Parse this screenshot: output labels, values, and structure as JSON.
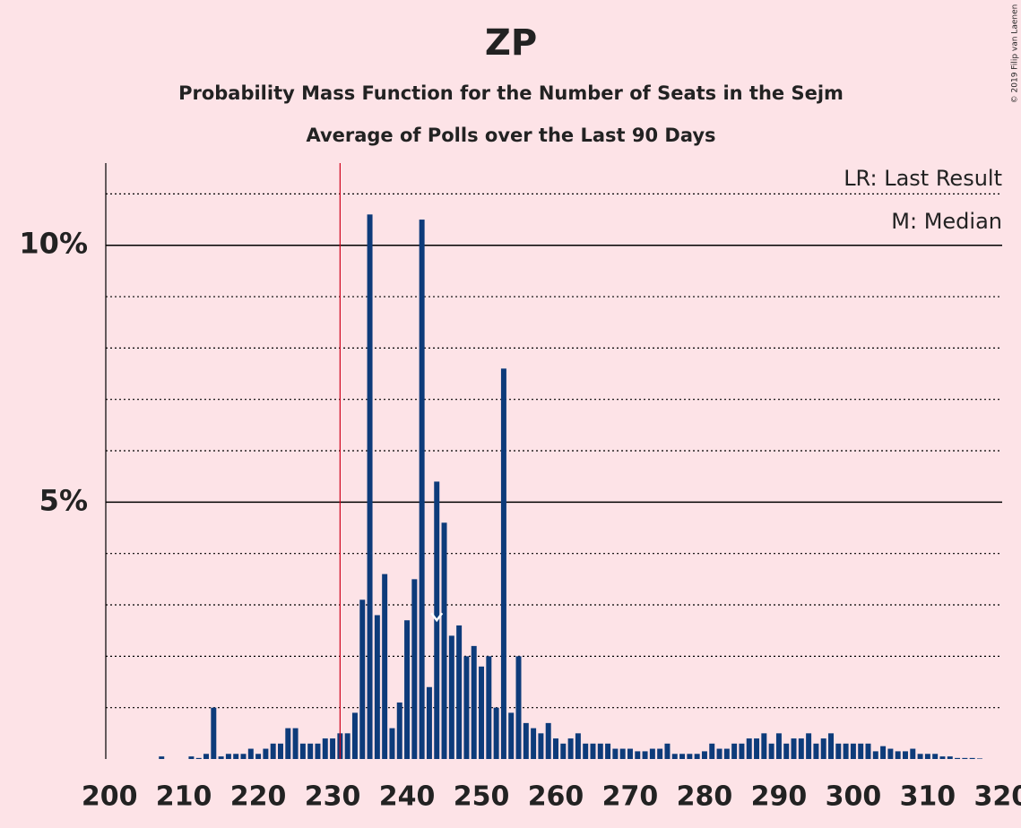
{
  "chart_data": {
    "type": "bar",
    "title": "ZP",
    "subtitle": "Probability Mass Function for the Number of Seats in the Sejm",
    "subtitle2": "Average of Polls over the Last 90 Days",
    "credit": "© 2019 Filip van Laenen",
    "legend": [
      "LR: Last Result",
      "M: Median"
    ],
    "color": "#0d3b7a",
    "x": [
      200,
      201,
      202,
      203,
      204,
      205,
      206,
      207,
      208,
      209,
      210,
      211,
      212,
      213,
      214,
      215,
      216,
      217,
      218,
      219,
      220,
      221,
      222,
      223,
      224,
      225,
      226,
      227,
      228,
      229,
      230,
      231,
      232,
      233,
      234,
      235,
      236,
      237,
      238,
      239,
      240,
      241,
      242,
      243,
      244,
      245,
      246,
      247,
      248,
      249,
      250,
      251,
      252,
      253,
      254,
      255,
      256,
      257,
      258,
      259,
      260,
      261,
      262,
      263,
      264,
      265,
      266,
      267,
      268,
      269,
      270,
      271,
      272,
      273,
      274,
      275,
      276,
      277,
      278,
      279,
      280,
      281,
      282,
      283,
      284,
      285,
      286,
      287,
      288,
      289,
      290,
      291,
      292,
      293,
      294,
      295,
      296,
      297,
      298,
      299,
      300,
      301,
      302,
      303,
      304,
      305,
      306,
      307,
      308,
      309,
      310,
      311,
      312,
      313,
      314,
      315,
      316,
      317,
      318,
      319,
      320
    ],
    "values": [
      0,
      0,
      0,
      0,
      0,
      0,
      0,
      0.05,
      0,
      0,
      0,
      0.05,
      0.02,
      0.1,
      1.0,
      0.05,
      0.1,
      0.1,
      0.1,
      0.2,
      0.1,
      0.2,
      0.3,
      0.3,
      0.6,
      0.6,
      0.3,
      0.3,
      0.3,
      0.4,
      0.4,
      0.5,
      0.5,
      0.9,
      3.1,
      10.6,
      2.8,
      3.6,
      0.6,
      1.1,
      2.7,
      3.5,
      10.5,
      1.4,
      5.4,
      4.6,
      2.4,
      2.6,
      2.0,
      2.2,
      1.8,
      2.0,
      1.0,
      7.6,
      0.9,
      2.0,
      0.7,
      0.6,
      0.5,
      0.7,
      0.4,
      0.3,
      0.4,
      0.5,
      0.3,
      0.3,
      0.3,
      0.3,
      0.2,
      0.2,
      0.2,
      0.15,
      0.15,
      0.2,
      0.2,
      0.3,
      0.1,
      0.1,
      0.1,
      0.1,
      0.15,
      0.3,
      0.2,
      0.2,
      0.3,
      0.3,
      0.4,
      0.4,
      0.5,
      0.3,
      0.5,
      0.3,
      0.4,
      0.4,
      0.5,
      0.3,
      0.4,
      0.5,
      0.3,
      0.3,
      0.3,
      0.3,
      0.3,
      0.15,
      0.25,
      0.2,
      0.15,
      0.15,
      0.2,
      0.1,
      0.1,
      0.1,
      0.05,
      0.05,
      0.02,
      0.02,
      0.02,
      0.01,
      0,
      0,
      0
    ],
    "last_result": 231,
    "median": 244,
    "xlim": [
      199.5,
      320.5
    ],
    "xticks": [
      200,
      210,
      220,
      230,
      240,
      250,
      260,
      270,
      280,
      290,
      300,
      310,
      320
    ],
    "ylim": [
      0,
      11.6
    ],
    "yticks": [
      {
        "value": 5,
        "label": "5%"
      },
      {
        "value": 10,
        "label": "10%"
      }
    ],
    "minor_yticks": [
      1,
      2,
      3,
      4,
      6,
      7,
      8,
      9,
      11
    ]
  }
}
